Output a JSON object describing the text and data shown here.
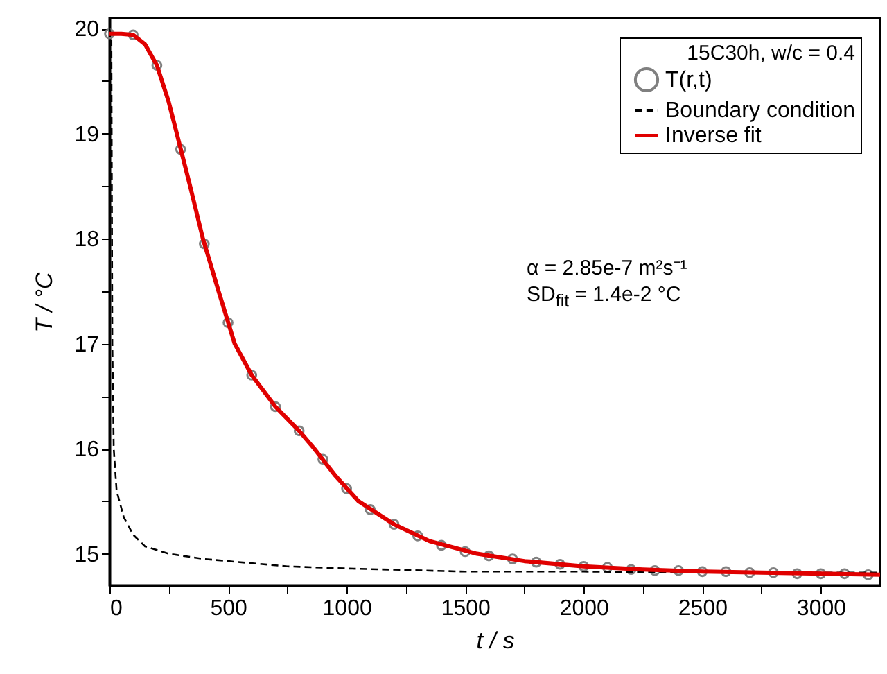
{
  "chart_data": {
    "type": "line",
    "xlabel": "t / s",
    "ylabel": "T / °C",
    "legend_title": "15C30h, w/c = 0.4",
    "legend": "top right",
    "xlim": [
      0,
      3250
    ],
    "ylim": [
      14.7,
      20.1
    ],
    "xticks": [
      0,
      {
        "value": 250,
        "label": null
      },
      500,
      {
        "value": 750,
        "label": null
      },
      1000,
      {
        "value": 1250,
        "label": null
      },
      1500,
      {
        "value": 1750,
        "label": null
      },
      2000,
      {
        "value": 2250,
        "label": null
      },
      2500,
      {
        "value": 2750,
        "label": null
      },
      3000
    ],
    "yticks": [
      15,
      {
        "value": 15.5,
        "label": null
      },
      16,
      {
        "value": 16.5,
        "label": null
      },
      17,
      {
        "value": 17.5,
        "label": null
      },
      18,
      {
        "value": 18.5,
        "label": null
      },
      19,
      {
        "value": 19.5,
        "label": null
      },
      20
    ],
    "grid": false,
    "annotations": [
      "α = 2.85e-7 m²s⁻¹",
      "SD$_{fit}$ = 1.4e-2 °C"
    ],
    "series": [
      {
        "name": "T(r,t)",
        "type": "scatter",
        "marker": "circle",
        "color": "#808080",
        "x": [
          0,
          100,
          200,
          300,
          400,
          500,
          600,
          700,
          800,
          900,
          1000,
          1100,
          1200,
          1300,
          1400,
          1500,
          1600,
          1700,
          1800,
          1900,
          2000,
          2100,
          2200,
          2300,
          2400,
          2500,
          2600,
          2700,
          2800,
          2900,
          3000,
          3100,
          3200
        ],
        "values": [
          19.95,
          19.94,
          19.65,
          18.85,
          17.95,
          17.2,
          16.7,
          16.4,
          16.17,
          15.9,
          15.62,
          15.42,
          15.28,
          15.17,
          15.08,
          15.02,
          14.98,
          14.95,
          14.92,
          14.9,
          14.88,
          14.87,
          14.85,
          14.84,
          14.84,
          14.83,
          14.83,
          14.82,
          14.82,
          14.81,
          14.81,
          14.81,
          14.8
        ]
      },
      {
        "name": "Boundary condition",
        "line_style": "dashed",
        "color": "#000000",
        "x": [
          0,
          8,
          12,
          18,
          30,
          60,
          100,
          150,
          250,
          400,
          500,
          750,
          1000,
          1500,
          2000,
          2500,
          3000,
          3250
        ],
        "values": [
          20.0,
          19.9,
          17.0,
          16.0,
          15.6,
          15.35,
          15.18,
          15.07,
          15.0,
          14.95,
          14.93,
          14.88,
          14.86,
          14.83,
          14.83,
          14.82,
          14.82,
          14.82
        ]
      },
      {
        "name": "Inverse fit",
        "line_style": "solid",
        "color": "#e00000",
        "x": [
          0,
          50,
          100,
          150,
          200,
          250,
          284,
          340,
          394,
          460,
          528,
          600,
          700,
          800,
          864,
          950,
          1050,
          1200,
          1350,
          1550,
          1750,
          2000,
          2250,
          2500,
          2750,
          3000,
          3250
        ],
        "values": [
          19.95,
          19.95,
          19.94,
          19.85,
          19.65,
          19.3,
          19.0,
          18.5,
          18.0,
          17.5,
          17.0,
          16.7,
          16.4,
          16.17,
          16.0,
          15.75,
          15.5,
          15.28,
          15.12,
          15.0,
          14.93,
          14.88,
          14.85,
          14.83,
          14.82,
          14.81,
          14.8
        ]
      }
    ]
  }
}
